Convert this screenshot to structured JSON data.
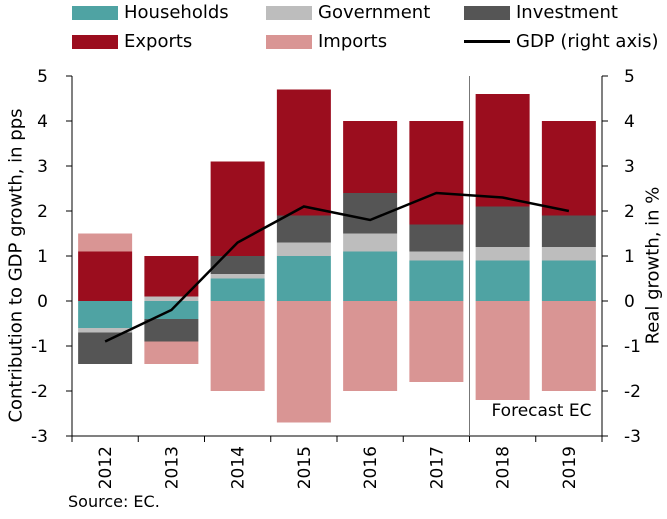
{
  "chart_data": {
    "type": "bar",
    "categories": [
      "2012",
      "2013",
      "2014",
      "2015",
      "2016",
      "2017",
      "2018",
      "2019"
    ],
    "series": [
      {
        "name": "Households",
        "color": "#4fa3a3",
        "values": [
          -0.6,
          -0.4,
          0.5,
          1.0,
          1.1,
          0.9,
          0.9,
          0.9
        ]
      },
      {
        "name": "Government",
        "color": "#bdbdbd",
        "values": [
          -0.1,
          0.1,
          0.1,
          0.3,
          0.4,
          0.2,
          0.3,
          0.3
        ]
      },
      {
        "name": "Investment",
        "color": "#555555",
        "values": [
          -0.7,
          -0.5,
          0.4,
          0.6,
          0.9,
          0.6,
          0.9,
          0.7
        ]
      },
      {
        "name": "Exports",
        "color": "#9b0d1e",
        "values": [
          1.1,
          0.9,
          2.1,
          2.8,
          1.6,
          2.3,
          2.5,
          2.1
        ]
      },
      {
        "name": "Imports",
        "color": "#d99594",
        "values": [
          0.4,
          -0.5,
          -2.0,
          -2.7,
          -2.0,
          -1.8,
          -2.2,
          -2.0
        ]
      }
    ],
    "line": {
      "name": "GDP (right axis)",
      "color": "#000000",
      "values": [
        -0.9,
        -0.2,
        1.3,
        2.1,
        1.8,
        2.4,
        2.3,
        2.0
      ]
    },
    "ylabel": "Contribution to GDP growth, in pps",
    "ylabel_right": "Real growth, in %",
    "ylim": [
      -3,
      5
    ],
    "yticks": [
      "-3",
      "-2",
      "-1",
      "0",
      "1",
      "2",
      "3",
      "4",
      "5"
    ],
    "forecast_label": "Forecast EC",
    "forecast_from": "2018",
    "grid": false,
    "legend_placement": "top"
  },
  "source": "Source: EC."
}
